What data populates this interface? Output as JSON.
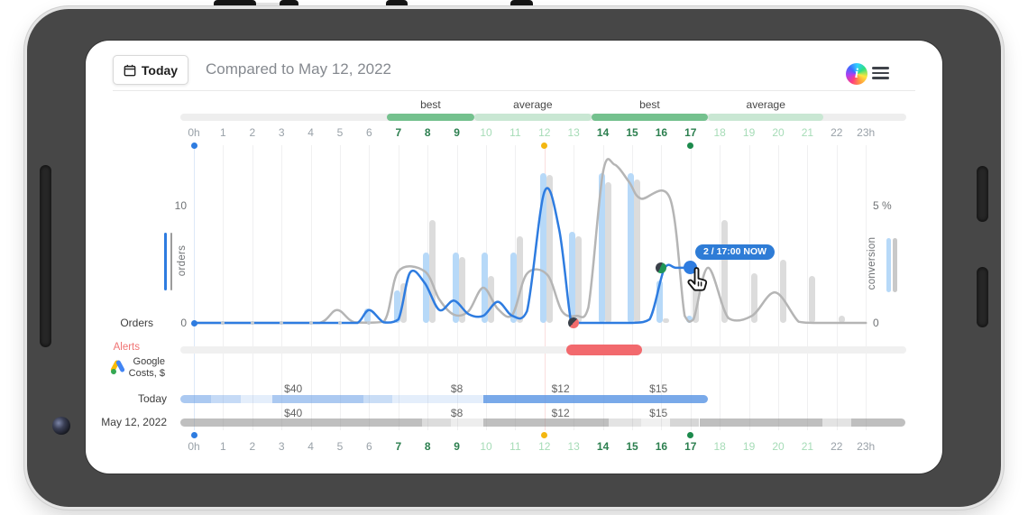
{
  "header": {
    "date_button": "Today",
    "compared_text": "Compared to May 12, 2022",
    "info_glyph": "i"
  },
  "tooltip": {
    "text": "2 / 17:00 NOW"
  },
  "axes": {
    "hours": [
      "0h",
      "1",
      "2",
      "3",
      "4",
      "5",
      "6",
      "7",
      "8",
      "9",
      "10",
      "11",
      "12",
      "13",
      "14",
      "15",
      "16",
      "17",
      "18",
      "19",
      "20",
      "21",
      "22",
      "23h"
    ],
    "hour_color_classes": "gggggggdddllllddddllllgg",
    "left": {
      "label": "orders",
      "ticks": [
        "10",
        "0"
      ]
    },
    "right": {
      "label": "conversion",
      "ticks": [
        "5 %",
        "0"
      ]
    }
  },
  "quality_bands": [
    {
      "label": "best",
      "type": "best",
      "from": 6.6,
      "to": 9.6
    },
    {
      "label": "average",
      "type": "average",
      "from": 9.6,
      "to": 13.6
    },
    {
      "label": "best",
      "type": "best",
      "from": 13.6,
      "to": 17.6
    },
    {
      "label": "average",
      "type": "average",
      "from": 17.6,
      "to": 21.55
    }
  ],
  "chart_data": {
    "type": "combo: paired bars (conversion %) + smooth lines (orders)",
    "hours": [
      0,
      1,
      2,
      3,
      4,
      5,
      6,
      7,
      8,
      9,
      10,
      11,
      12,
      13,
      14,
      15,
      16,
      17,
      18,
      19,
      20,
      21,
      22,
      23
    ],
    "right_axis": {
      "label": "conversion",
      "range_pct": [
        0,
        5
      ]
    },
    "left_axis": {
      "label": "orders",
      "range": [
        0,
        10
      ]
    },
    "series": [
      {
        "name": "today_conversion_bars_pct",
        "color": "#b7d9f8",
        "values": [
          0,
          0,
          0,
          0,
          0,
          0,
          0.6,
          1.4,
          3,
          3,
          3,
          3,
          6.4,
          3.9,
          6.4,
          6.4,
          1.8,
          0.3,
          null,
          null,
          null,
          null,
          null,
          null
        ]
      },
      {
        "name": "compare_conversion_bars_pct",
        "color": "#dcdcdc",
        "values": [
          0,
          0,
          0,
          0,
          0,
          0,
          0,
          1.7,
          4.4,
          2.8,
          2,
          3.7,
          6.3,
          3.7,
          6,
          6.1,
          0.2,
          1.9,
          4.4,
          2.1,
          2.7,
          2,
          0.3,
          0
        ]
      },
      {
        "name": "today_orders_line",
        "color": "#2e7ce0",
        "points": [
          [
            0,
            0
          ],
          [
            1,
            0
          ],
          [
            2,
            0
          ],
          [
            3,
            0
          ],
          [
            4,
            0
          ],
          [
            5,
            0
          ],
          [
            5.6,
            0
          ],
          [
            6,
            1.1
          ],
          [
            6.5,
            0.05
          ],
          [
            7,
            0.3
          ],
          [
            7.4,
            4.3
          ],
          [
            7.9,
            3.4
          ],
          [
            8.4,
            1.1
          ],
          [
            8.9,
            1.9
          ],
          [
            9.4,
            0.75
          ],
          [
            9.9,
            0.6
          ],
          [
            10.4,
            1.8
          ],
          [
            10.9,
            0.6
          ],
          [
            11.4,
            1
          ],
          [
            12,
            11.2
          ],
          [
            12.5,
            8
          ],
          [
            12.9,
            0.2
          ],
          [
            13.1,
            0
          ],
          [
            14,
            0
          ],
          [
            15,
            0
          ],
          [
            15.6,
            0.3
          ],
          [
            16.1,
            4.6
          ],
          [
            16.5,
            4.7
          ],
          [
            17,
            4.7
          ]
        ]
      },
      {
        "name": "compare_orders_line",
        "color": "#b5b5b5",
        "points": [
          [
            0,
            0
          ],
          [
            1,
            0
          ],
          [
            2,
            0
          ],
          [
            3,
            0
          ],
          [
            4.3,
            0
          ],
          [
            4.9,
            1.1
          ],
          [
            5.5,
            0.05
          ],
          [
            6.5,
            0.1
          ],
          [
            7,
            4.4
          ],
          [
            7.9,
            4.4
          ],
          [
            8.4,
            2
          ],
          [
            8.9,
            0.7
          ],
          [
            9.4,
            1
          ],
          [
            9.9,
            3
          ],
          [
            10.4,
            1.2
          ],
          [
            10.9,
            0.7
          ],
          [
            11.4,
            4.2
          ],
          [
            12.1,
            4.1
          ],
          [
            12.6,
            1
          ],
          [
            13.1,
            0.6
          ],
          [
            13.5,
            1.3
          ],
          [
            14,
            12.8
          ],
          [
            14.4,
            13.5
          ],
          [
            14.9,
            12
          ],
          [
            15.3,
            10.6
          ],
          [
            16.3,
            10.6
          ],
          [
            16.8,
            0.6
          ],
          [
            17.1,
            0.3
          ],
          [
            17.6,
            4.7
          ],
          [
            18.3,
            0.4
          ],
          [
            19.1,
            0.6
          ],
          [
            19.9,
            2.6
          ],
          [
            20.7,
            0.1
          ],
          [
            21.2,
            0
          ],
          [
            22,
            0
          ],
          [
            23,
            0
          ]
        ]
      }
    ],
    "now": {
      "hour": 17,
      "label": "2 / 17:00 NOW"
    }
  },
  "axis_markers": [
    {
      "hour": 0,
      "color": "#2e7ce0",
      "name": "day-start-marker"
    },
    {
      "hour": 12,
      "color": "#f3b711",
      "name": "midday-marker"
    },
    {
      "hour": 17,
      "color": "#1c8a4c",
      "name": "current-hour-marker"
    }
  ],
  "baseline_dots_hours": [
    1,
    2,
    3,
    4,
    5,
    6
  ],
  "point_markers": {
    "alert_dot": {
      "hour": 13,
      "value": 0
    },
    "checkpoint_dot": {
      "hour": 16,
      "value": 4.7
    },
    "now_dot": {
      "hour": 17,
      "value": 4.7
    }
  },
  "rows": {
    "orders_label": "Orders",
    "alerts_label": "Alerts",
    "costs_label_line1": "Google",
    "costs_label_line2": "Costs, $",
    "today_label": "Today",
    "compare_label": "May 12, 2022"
  },
  "alerts": {
    "segment": {
      "from": 12.75,
      "to": 15.35
    }
  },
  "costs": {
    "values": [
      {
        "text": "$40",
        "hour": 3.4
      },
      {
        "text": "$8",
        "hour": 9.0
      },
      {
        "text": "$12",
        "hour": 12.55
      },
      {
        "text": "$15",
        "hour": 15.9
      }
    ],
    "today": {
      "end_hour": 17.6,
      "base_rgb": "88,148,228",
      "segments": [
        {
          "from": -0.45,
          "to": 0.6,
          "alpha": 0.5
        },
        {
          "from": 0.6,
          "to": 1.6,
          "alpha": 0.35
        },
        {
          "from": 1.6,
          "to": 2.7,
          "alpha": 0.16
        },
        {
          "from": 2.7,
          "to": 5.8,
          "alpha": 0.5
        },
        {
          "from": 5.8,
          "to": 6.8,
          "alpha": 0.32
        },
        {
          "from": 6.8,
          "to": 9.9,
          "alpha": 0.16
        },
        {
          "from": 9.9,
          "to": 17.6,
          "alpha": 0.8
        }
      ]
    },
    "compare": {
      "end_hour": 24.35,
      "base_rgb": "128,128,128",
      "segments": [
        {
          "from": -0.45,
          "to": 7.8,
          "alpha": 0.5
        },
        {
          "from": 7.8,
          "to": 8.8,
          "alpha": 0.28
        },
        {
          "from": 8.8,
          "to": 9.9,
          "alpha": 0.14
        },
        {
          "from": 9.9,
          "to": 14.2,
          "alpha": 0.5
        },
        {
          "from": 14.2,
          "to": 15.3,
          "alpha": 0.22
        },
        {
          "from": 15.3,
          "to": 16.3,
          "alpha": 0.12
        },
        {
          "from": 16.3,
          "to": 17.3,
          "alpha": 0.32
        },
        {
          "from": 17.3,
          "to": 21.5,
          "alpha": 0.5
        },
        {
          "from": 21.5,
          "to": 22.5,
          "alpha": 0.22
        },
        {
          "from": 22.5,
          "to": 24.35,
          "alpha": 0.5
        }
      ]
    }
  },
  "colors": {
    "accent_blue": "#2e7ce0",
    "today_bar": "#b7d9f8",
    "compare_bar": "#dcdcdc",
    "compare_line": "#b5b5b5",
    "best_band": "#74c18e",
    "average_band": "#c9e7d3",
    "alert_red": "#f2696d",
    "alerts_text": "#f07373",
    "midday_yellow": "#f3b711",
    "marker_green": "#1c8a4c",
    "grid": "#f0f0f1",
    "grid_day_start": "#dce9f8",
    "grid_midday": "#fadede"
  }
}
